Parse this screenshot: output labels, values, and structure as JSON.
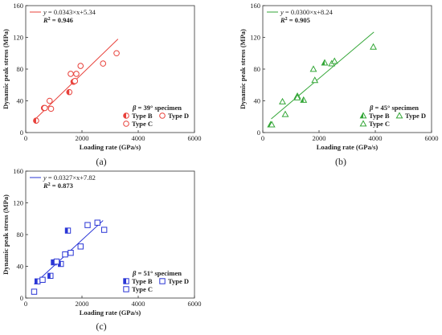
{
  "chart_data": [
    {
      "type": "scatter",
      "sub_label": "(a)",
      "xlabel": "Loading rate (GPa/s)",
      "ylabel": "Dynamic peak stress (MPa)",
      "xlim": [
        0,
        6000
      ],
      "ylim": [
        0,
        160
      ],
      "xticks": [
        "0",
        "2000",
        "4000",
        "6000"
      ],
      "yticks": [
        "0",
        "40",
        "80",
        "120",
        "160"
      ],
      "color": "#e8403a",
      "fit": {
        "label": "y = 0.0343×x + 5.34",
        "y_name": "y",
        "formula": " = 0.0343×x+5.34",
        "r2_name": "R",
        "r2_value": " = 0.946",
        "slope": 0.0343,
        "intercept": 5.34,
        "x_range": [
          350,
          3280
        ]
      },
      "legend_title": {
        "symbol": "β",
        "text": " = 39° specimen"
      },
      "legend": [
        {
          "name": "Type B",
          "marker": "circle-half"
        },
        {
          "name": "Type D",
          "marker": "circle-open"
        },
        {
          "name": "Type C",
          "marker": "circle-open"
        }
      ],
      "series": [
        {
          "name": "Type B",
          "marker": "circle-half",
          "points": [
            [
              370,
              15
            ],
            [
              650,
              31
            ],
            [
              1550,
              51
            ],
            [
              1700,
              64
            ]
          ]
        },
        {
          "name": "Type D",
          "marker": "circle-open",
          "points": [
            [
              850,
              40
            ],
            [
              1600,
              74
            ],
            [
              1750,
              65
            ],
            [
              1950,
              84
            ],
            [
              2750,
              87
            ],
            [
              3230,
              100
            ]
          ]
        },
        {
          "name": "Type C",
          "marker": "circle-open",
          "points": [
            [
              680,
              31
            ],
            [
              900,
              30
            ],
            [
              1800,
              74
            ]
          ]
        }
      ]
    },
    {
      "type": "scatter",
      "sub_label": "(b)",
      "xlabel": "Loading rate (GPa/s)",
      "ylabel": "Dynamic peak stress (MPa)",
      "xlim": [
        0,
        6000
      ],
      "ylim": [
        0,
        160
      ],
      "xticks": [
        "0",
        "2000",
        "4000",
        "6000"
      ],
      "yticks": [
        "0",
        "40",
        "80",
        "120",
        "160"
      ],
      "color": "#33a637",
      "fit": {
        "label": "y = 0.0300×x + 8.24",
        "y_name": "y",
        "formula": " = 0.0300×x+8.24",
        "r2_name": "R",
        "r2_value": " = 0.905",
        "slope": 0.03,
        "intercept": 8.24,
        "x_range": [
          300,
          3950
        ]
      },
      "legend_title": {
        "symbol": "β",
        "text": " = 45° specimen"
      },
      "legend": [
        {
          "name": "Type B",
          "marker": "triangle-half"
        },
        {
          "name": "Type D",
          "marker": "triangle-open"
        },
        {
          "name": "Type C",
          "marker": "triangle-open"
        }
      ],
      "series": [
        {
          "name": "Type B",
          "marker": "triangle-half",
          "points": [
            [
              280,
              10
            ],
            [
              1230,
              46
            ],
            [
              1450,
              41
            ],
            [
              2200,
              88
            ]
          ]
        },
        {
          "name": "Type D",
          "marker": "triangle-open",
          "points": [
            [
              700,
              39
            ],
            [
              1800,
              80
            ],
            [
              1850,
              66
            ],
            [
              2450,
              87
            ],
            [
              3930,
              108
            ]
          ]
        },
        {
          "name": "Type C",
          "marker": "triangle-open",
          "points": [
            [
              320,
              10
            ],
            [
              800,
              23
            ],
            [
              1230,
              44
            ],
            [
              2550,
              90
            ]
          ]
        }
      ]
    },
    {
      "type": "scatter",
      "sub_label": "(c)",
      "xlabel": "Loading rate (GPa/s)",
      "ylabel": "Dynamic peak stress (MPa)",
      "xlim": [
        0,
        6000
      ],
      "ylim": [
        0,
        160
      ],
      "xticks": [
        "0",
        "2000",
        "4000",
        "6000"
      ],
      "yticks": [
        "0",
        "40",
        "80",
        "120",
        "160"
      ],
      "color": "#2a36d6",
      "fit": {
        "label": "y = 0.0327×x + 7.82",
        "y_name": "y",
        "formula": " = 0.0327×x+7.82",
        "r2_name": "R",
        "r2_value": " = 0.873",
        "slope": 0.0327,
        "intercept": 7.82,
        "x_range": [
          300,
          2750
        ]
      },
      "legend_title": {
        "symbol": "β",
        "text": " = 51° specimen"
      },
      "legend": [
        {
          "name": "Type B",
          "marker": "square-half"
        },
        {
          "name": "Type D",
          "marker": "square-open"
        },
        {
          "name": "Type C",
          "marker": "square-open"
        }
      ],
      "series": [
        {
          "name": "Type B",
          "marker": "square-half",
          "points": [
            [
              420,
              21
            ],
            [
              880,
              28
            ],
            [
              1000,
              45
            ],
            [
              1250,
              43
            ],
            [
              1500,
              85
            ]
          ]
        },
        {
          "name": "Type D",
          "marker": "square-open",
          "points": [
            [
              300,
              8
            ],
            [
              1950,
              65
            ],
            [
              2550,
              95
            ],
            [
              2790,
              86
            ]
          ]
        },
        {
          "name": "Type C",
          "marker": "square-open",
          "points": [
            [
              600,
              23
            ],
            [
              1100,
              46
            ],
            [
              1400,
              55
            ],
            [
              1600,
              57
            ],
            [
              2200,
              92
            ]
          ]
        }
      ]
    }
  ]
}
